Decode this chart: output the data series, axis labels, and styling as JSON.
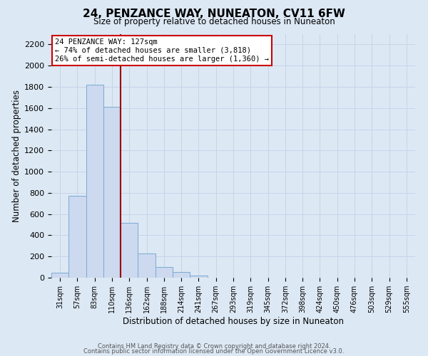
{
  "title": "24, PENZANCE WAY, NUNEATON, CV11 6FW",
  "subtitle": "Size of property relative to detached houses in Nuneaton",
  "xlabel": "Distribution of detached houses by size in Nuneaton",
  "ylabel": "Number of detached properties",
  "categories": [
    "31sqm",
    "57sqm",
    "83sqm",
    "110sqm",
    "136sqm",
    "162sqm",
    "188sqm",
    "214sqm",
    "241sqm",
    "267sqm",
    "293sqm",
    "319sqm",
    "345sqm",
    "372sqm",
    "398sqm",
    "424sqm",
    "450sqm",
    "476sqm",
    "503sqm",
    "529sqm",
    "555sqm"
  ],
  "values": [
    50,
    775,
    1820,
    1610,
    520,
    230,
    100,
    55,
    20,
    0,
    0,
    0,
    0,
    0,
    0,
    0,
    0,
    0,
    0,
    0,
    0
  ],
  "bar_color": "#ccd9ee",
  "bar_edge_color": "#7baad4",
  "marker_line_color": "#990000",
  "annotation_line1": "24 PENZANCE WAY: 127sqm",
  "annotation_line2": "← 74% of detached houses are smaller (3,818)",
  "annotation_line3": "26% of semi-detached houses are larger (1,360) →",
  "annotation_box_color": "#ffffff",
  "annotation_box_edge": "#cc0000",
  "ylim": [
    0,
    2300
  ],
  "yticks": [
    0,
    200,
    400,
    600,
    800,
    1000,
    1200,
    1400,
    1600,
    1800,
    2000,
    2200
  ],
  "grid_color": "#c8d4e8",
  "background_color": "#dce8f4",
  "footer1": "Contains HM Land Registry data © Crown copyright and database right 2024.",
  "footer2": "Contains public sector information licensed under the Open Government Licence v3.0."
}
